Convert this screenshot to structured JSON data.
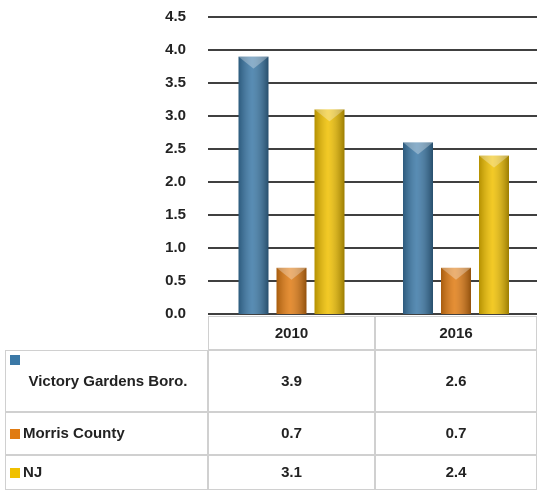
{
  "chart_data": {
    "type": "bar",
    "categories": [
      "2010",
      "2016"
    ],
    "series": [
      {
        "name": "Victory Gardens Boro.",
        "color": "#3b78a6",
        "values": [
          3.9,
          2.6
        ]
      },
      {
        "name": "Morris County",
        "color": "#e07b12",
        "values": [
          0.7,
          0.7
        ]
      },
      {
        "name": "NJ",
        "color": "#f0c000",
        "values": [
          3.1,
          2.4
        ]
      }
    ],
    "ylim": [
      0,
      4.5
    ],
    "yticks": [
      {
        "value": 0,
        "label": "0.0"
      },
      0.5,
      {
        "value": 1,
        "label": "1.0"
      },
      1.5,
      {
        "value": 2,
        "label": "2.0"
      },
      2.5,
      {
        "value": 3,
        "label": "3.0"
      },
      3.5,
      {
        "value": 4,
        "label": "4.0"
      },
      4.5
    ],
    "grid": true
  }
}
